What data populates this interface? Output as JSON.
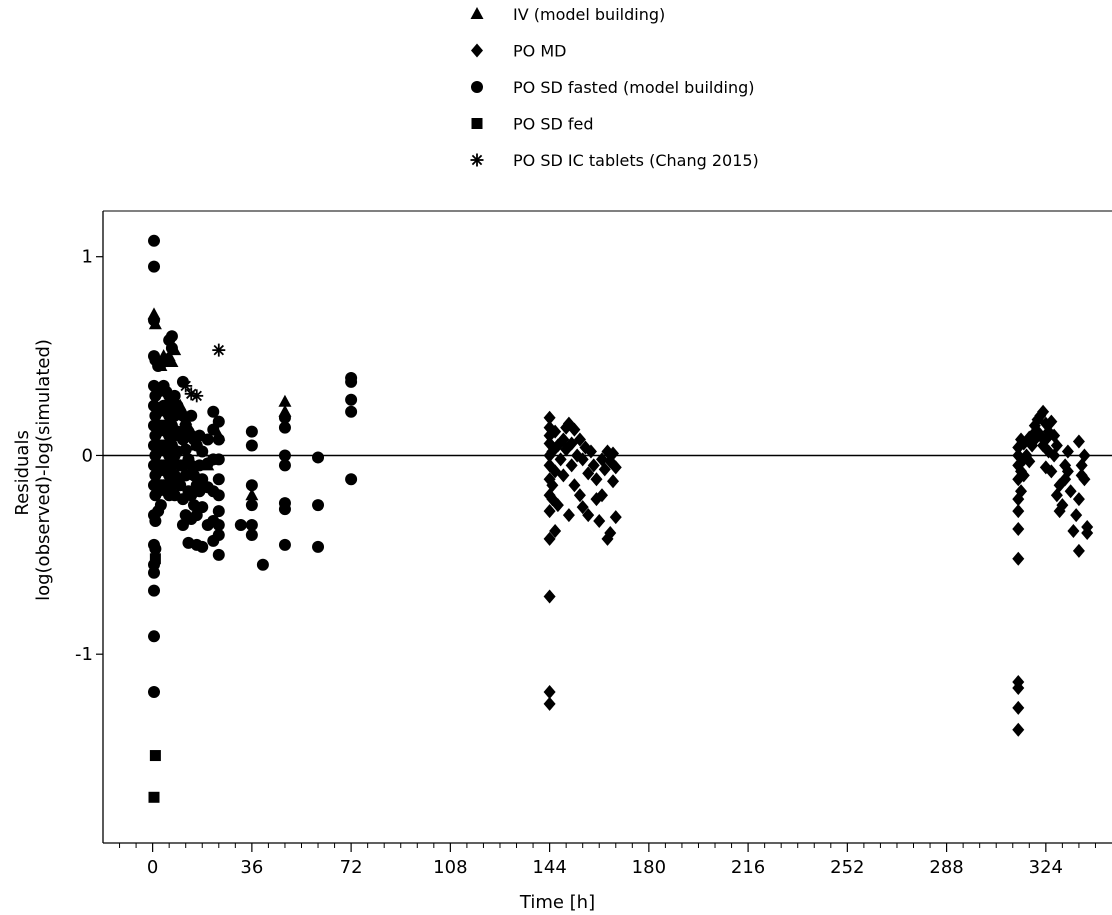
{
  "chart_data": {
    "type": "scatter",
    "title": "",
    "xlabel": "Time [h]",
    "ylabel_lines": [
      "Residuals",
      "log(observed)-log(simulated)"
    ],
    "xlim": [
      -18,
      348
    ],
    "ylim": [
      -1.95,
      1.23
    ],
    "xticks": [
      0,
      36,
      72,
      108,
      144,
      180,
      216,
      252,
      288,
      324
    ],
    "yticks": [
      1,
      0,
      -1
    ],
    "ytick_labels": [
      "1",
      "0",
      "-1"
    ],
    "reference_line_y": 0,
    "legend_position": "top",
    "grid": false,
    "series": [
      {
        "name": "IV (model building)",
        "marker": "triangle",
        "points": [
          [
            0.5,
            0.71
          ],
          [
            1,
            0.66
          ],
          [
            3,
            0.45
          ],
          [
            4,
            0.5
          ],
          [
            5,
            0.48
          ],
          [
            6,
            0.5
          ],
          [
            7,
            0.47
          ],
          [
            8,
            0.53
          ],
          [
            10,
            0.25
          ],
          [
            12,
            0.18
          ],
          [
            14,
            0.12
          ],
          [
            16,
            0.05
          ],
          [
            18,
            0.02
          ],
          [
            20,
            -0.05
          ],
          [
            24,
            0.1
          ],
          [
            36,
            -0.2
          ],
          [
            48,
            0.27
          ],
          [
            48,
            0.22
          ]
        ]
      },
      {
        "name": "PO MD",
        "marker": "diamond",
        "points": [
          [
            144,
            0.19
          ],
          [
            144,
            0.14
          ],
          [
            144,
            0.1
          ],
          [
            144,
            0.06
          ],
          [
            144,
            0.0
          ],
          [
            144,
            -0.05
          ],
          [
            144,
            -0.12
          ],
          [
            144,
            -0.2
          ],
          [
            144,
            -0.28
          ],
          [
            144,
            -0.42
          ],
          [
            144,
            -0.71
          ],
          [
            144,
            -1.19
          ],
          [
            144,
            -1.25
          ],
          [
            145,
            0.02
          ],
          [
            145,
            -0.15
          ],
          [
            145,
            -0.22
          ],
          [
            146,
            0.12
          ],
          [
            146,
            -0.08
          ],
          [
            146,
            -0.38
          ],
          [
            147,
            0.05
          ],
          [
            147,
            -0.25
          ],
          [
            148,
            -0.02
          ],
          [
            149,
            0.08
          ],
          [
            149,
            -0.1
          ],
          [
            150,
            0.14
          ],
          [
            150,
            0.03
          ],
          [
            151,
            0.16
          ],
          [
            151,
            -0.3
          ],
          [
            152,
            0.06
          ],
          [
            152,
            -0.05
          ],
          [
            153,
            0.13
          ],
          [
            153,
            -0.15
          ],
          [
            154,
            0.0
          ],
          [
            155,
            0.08
          ],
          [
            155,
            -0.2
          ],
          [
            156,
            -0.02
          ],
          [
            156,
            -0.26
          ],
          [
            157,
            0.04
          ],
          [
            158,
            -0.09
          ],
          [
            158,
            -0.3
          ],
          [
            159,
            0.02
          ],
          [
            160,
            -0.05
          ],
          [
            161,
            -0.12
          ],
          [
            161,
            -0.22
          ],
          [
            162,
            -0.33
          ],
          [
            163,
            -0.02
          ],
          [
            163,
            -0.2
          ],
          [
            164,
            -0.07
          ],
          [
            165,
            0.02
          ],
          [
            165,
            -0.42
          ],
          [
            166,
            -0.03
          ],
          [
            166,
            -0.39
          ],
          [
            167,
            0.01
          ],
          [
            167,
            -0.13
          ],
          [
            168,
            -0.31
          ],
          [
            168,
            -0.06
          ]
        ]
      },
      {
        "name": "PO SD fasted (model building)",
        "marker": "circle",
        "points": [
          [
            0.5,
            1.08
          ],
          [
            0.5,
            0.95
          ],
          [
            0.5,
            0.68
          ],
          [
            0.5,
            0.5
          ],
          [
            0.5,
            0.35
          ],
          [
            0.5,
            0.25
          ],
          [
            0.5,
            0.15
          ],
          [
            0.5,
            0.05
          ],
          [
            0.5,
            -0.05
          ],
          [
            0.5,
            -0.15
          ],
          [
            0.5,
            -0.3
          ],
          [
            0.5,
            -0.45
          ],
          [
            0.5,
            -0.55
          ],
          [
            0.5,
            -0.59
          ],
          [
            0.5,
            -0.68
          ],
          [
            0.5,
            -0.91
          ],
          [
            0.5,
            -1.19
          ],
          [
            1,
            0.48
          ],
          [
            1,
            0.3
          ],
          [
            1,
            0.2
          ],
          [
            1,
            0.1
          ],
          [
            1,
            0.0
          ],
          [
            1,
            -0.1
          ],
          [
            1,
            -0.2
          ],
          [
            1,
            -0.33
          ],
          [
            1,
            -0.47
          ],
          [
            2,
            0.45
          ],
          [
            2,
            0.32
          ],
          [
            2,
            0.22
          ],
          [
            2,
            0.12
          ],
          [
            2,
            0.02
          ],
          [
            2,
            -0.08
          ],
          [
            2,
            -0.18
          ],
          [
            2,
            -0.28
          ],
          [
            3,
            0.46
          ],
          [
            3,
            0.33
          ],
          [
            3,
            0.24
          ],
          [
            3,
            0.15
          ],
          [
            3,
            0.05
          ],
          [
            3,
            -0.05
          ],
          [
            3,
            -0.15
          ],
          [
            3,
            -0.25
          ],
          [
            4,
            0.35
          ],
          [
            4,
            0.25
          ],
          [
            4,
            0.15
          ],
          [
            4,
            0.05
          ],
          [
            4,
            -0.05
          ],
          [
            4,
            -0.15
          ],
          [
            5,
            0.32
          ],
          [
            5,
            0.22
          ],
          [
            5,
            0.12
          ],
          [
            5,
            0.02
          ],
          [
            5,
            -0.08
          ],
          [
            5,
            -0.18
          ],
          [
            6,
            0.58
          ],
          [
            6,
            0.3
          ],
          [
            6,
            0.2
          ],
          [
            6,
            0.1
          ],
          [
            6,
            0.0
          ],
          [
            6,
            -0.1
          ],
          [
            6,
            -0.2
          ],
          [
            7,
            0.6
          ],
          [
            7,
            0.54
          ],
          [
            7,
            0.25
          ],
          [
            7,
            0.15
          ],
          [
            7,
            0.05
          ],
          [
            7,
            -0.05
          ],
          [
            7,
            -0.15
          ],
          [
            8,
            0.3
          ],
          [
            8,
            0.2
          ],
          [
            8,
            0.1
          ],
          [
            8,
            0.0
          ],
          [
            8,
            -0.1
          ],
          [
            8,
            -0.2
          ],
          [
            9,
            0.25
          ],
          [
            9,
            0.12
          ],
          [
            9,
            0.02
          ],
          [
            9,
            -0.12
          ],
          [
            10,
            0.22
          ],
          [
            10,
            0.1
          ],
          [
            10,
            -0.05
          ],
          [
            10,
            -0.15
          ],
          [
            11,
            0.37
          ],
          [
            11,
            0.2
          ],
          [
            11,
            0.08
          ],
          [
            11,
            -0.05
          ],
          [
            11,
            -0.22
          ],
          [
            11,
            -0.35
          ],
          [
            12,
            0.15
          ],
          [
            12,
            0.03
          ],
          [
            12,
            -0.1
          ],
          [
            12,
            -0.3
          ],
          [
            13,
            0.12
          ],
          [
            13,
            -0.02
          ],
          [
            13,
            -0.18
          ],
          [
            13,
            -0.44
          ],
          [
            14,
            0.2
          ],
          [
            14,
            0.1
          ],
          [
            14,
            -0.05
          ],
          [
            14,
            -0.2
          ],
          [
            14,
            -0.32
          ],
          [
            15,
            0.08
          ],
          [
            15,
            -0.1
          ],
          [
            15,
            -0.25
          ],
          [
            16,
            0.05
          ],
          [
            16,
            -0.15
          ],
          [
            16,
            -0.3
          ],
          [
            16,
            -0.45
          ],
          [
            17,
            0.1
          ],
          [
            17,
            -0.05
          ],
          [
            17,
            -0.18
          ],
          [
            18,
            0.02
          ],
          [
            18,
            -0.12
          ],
          [
            18,
            -0.26
          ],
          [
            18,
            -0.46
          ],
          [
            20,
            0.08
          ],
          [
            20,
            -0.04
          ],
          [
            20,
            -0.16
          ],
          [
            20,
            -0.35
          ],
          [
            22,
            0.22
          ],
          [
            22,
            0.13
          ],
          [
            22,
            -0.02
          ],
          [
            22,
            -0.18
          ],
          [
            22,
            -0.33
          ],
          [
            22,
            -0.43
          ],
          [
            24,
            0.17
          ],
          [
            24,
            0.08
          ],
          [
            24,
            -0.02
          ],
          [
            24,
            -0.12
          ],
          [
            24,
            -0.2
          ],
          [
            24,
            -0.28
          ],
          [
            24,
            -0.35
          ],
          [
            24,
            -0.4
          ],
          [
            24,
            -0.5
          ],
          [
            32,
            -0.35
          ],
          [
            36,
            0.12
          ],
          [
            36,
            0.05
          ],
          [
            36,
            -0.15
          ],
          [
            36,
            -0.25
          ],
          [
            36,
            -0.35
          ],
          [
            36,
            -0.4
          ],
          [
            40,
            -0.55
          ],
          [
            48,
            0.19
          ],
          [
            48,
            0.14
          ],
          [
            48,
            0.0
          ],
          [
            48,
            -0.05
          ],
          [
            48,
            -0.24
          ],
          [
            48,
            -0.27
          ],
          [
            48,
            -0.45
          ],
          [
            60,
            -0.01
          ],
          [
            60,
            -0.25
          ],
          [
            60,
            -0.46
          ],
          [
            72,
            0.39
          ],
          [
            72,
            0.37
          ],
          [
            72,
            0.28
          ],
          [
            72,
            0.22
          ],
          [
            72,
            -0.12
          ]
        ]
      },
      {
        "name": "PO SD fed",
        "marker": "square",
        "points": [
          [
            1,
            -0.52
          ],
          [
            1,
            -1.51
          ],
          [
            0.5,
            -1.72
          ]
        ]
      },
      {
        "name": "PO SD IC tablets (Chang 2015)",
        "marker": "asterisk",
        "points": [
          [
            24,
            0.53
          ],
          [
            16,
            0.3
          ],
          [
            14,
            0.31
          ],
          [
            12,
            0.35
          ]
        ]
      }
    ],
    "series_extra": {
      "PO MD": [
        [
          314,
          0.04
        ],
        [
          314,
          0.0
        ],
        [
          314,
          -0.05
        ],
        [
          314,
          -0.12
        ],
        [
          314,
          -0.22
        ],
        [
          314,
          -0.28
        ],
        [
          314,
          -0.37
        ],
        [
          314,
          -0.52
        ],
        [
          314,
          -1.14
        ],
        [
          314,
          -1.17
        ],
        [
          314,
          -1.27
        ],
        [
          314,
          -1.38
        ],
        [
          315,
          0.08
        ],
        [
          315,
          -0.08
        ],
        [
          315,
          -0.18
        ],
        [
          316,
          0.06
        ],
        [
          316,
          -0.02
        ],
        [
          316,
          -0.1
        ],
        [
          317,
          0.0
        ],
        [
          318,
          0.09
        ],
        [
          318,
          -0.03
        ],
        [
          319,
          0.05
        ],
        [
          319,
          0.1
        ],
        [
          320,
          0.08
        ],
        [
          320,
          0.15
        ],
        [
          321,
          0.12
        ],
        [
          321,
          0.18
        ],
        [
          322,
          0.2
        ],
        [
          322,
          0.1
        ],
        [
          323,
          0.22
        ],
        [
          323,
          0.05
        ],
        [
          324,
          0.16
        ],
        [
          324,
          0.08
        ],
        [
          324,
          -0.06
        ],
        [
          325,
          0.12
        ],
        [
          325,
          0.02
        ],
        [
          326,
          0.17
        ],
        [
          326,
          -0.08
        ],
        [
          327,
          0.1
        ],
        [
          327,
          0.0
        ],
        [
          328,
          0.05
        ],
        [
          328,
          -0.2
        ],
        [
          329,
          -0.15
        ],
        [
          329,
          -0.28
        ],
        [
          330,
          -0.25
        ],
        [
          331,
          -0.12
        ],
        [
          331,
          -0.05
        ],
        [
          332,
          0.02
        ],
        [
          332,
          -0.08
        ],
        [
          333,
          -0.18
        ],
        [
          334,
          -0.38
        ],
        [
          335,
          -0.3
        ],
        [
          336,
          0.07
        ],
        [
          336,
          -0.22
        ],
        [
          336,
          -0.48
        ],
        [
          337,
          -0.05
        ],
        [
          337,
          -0.1
        ],
        [
          338,
          0.0
        ],
        [
          338,
          -0.12
        ],
        [
          339,
          -0.36
        ],
        [
          339,
          -0.39
        ]
      ]
    }
  }
}
